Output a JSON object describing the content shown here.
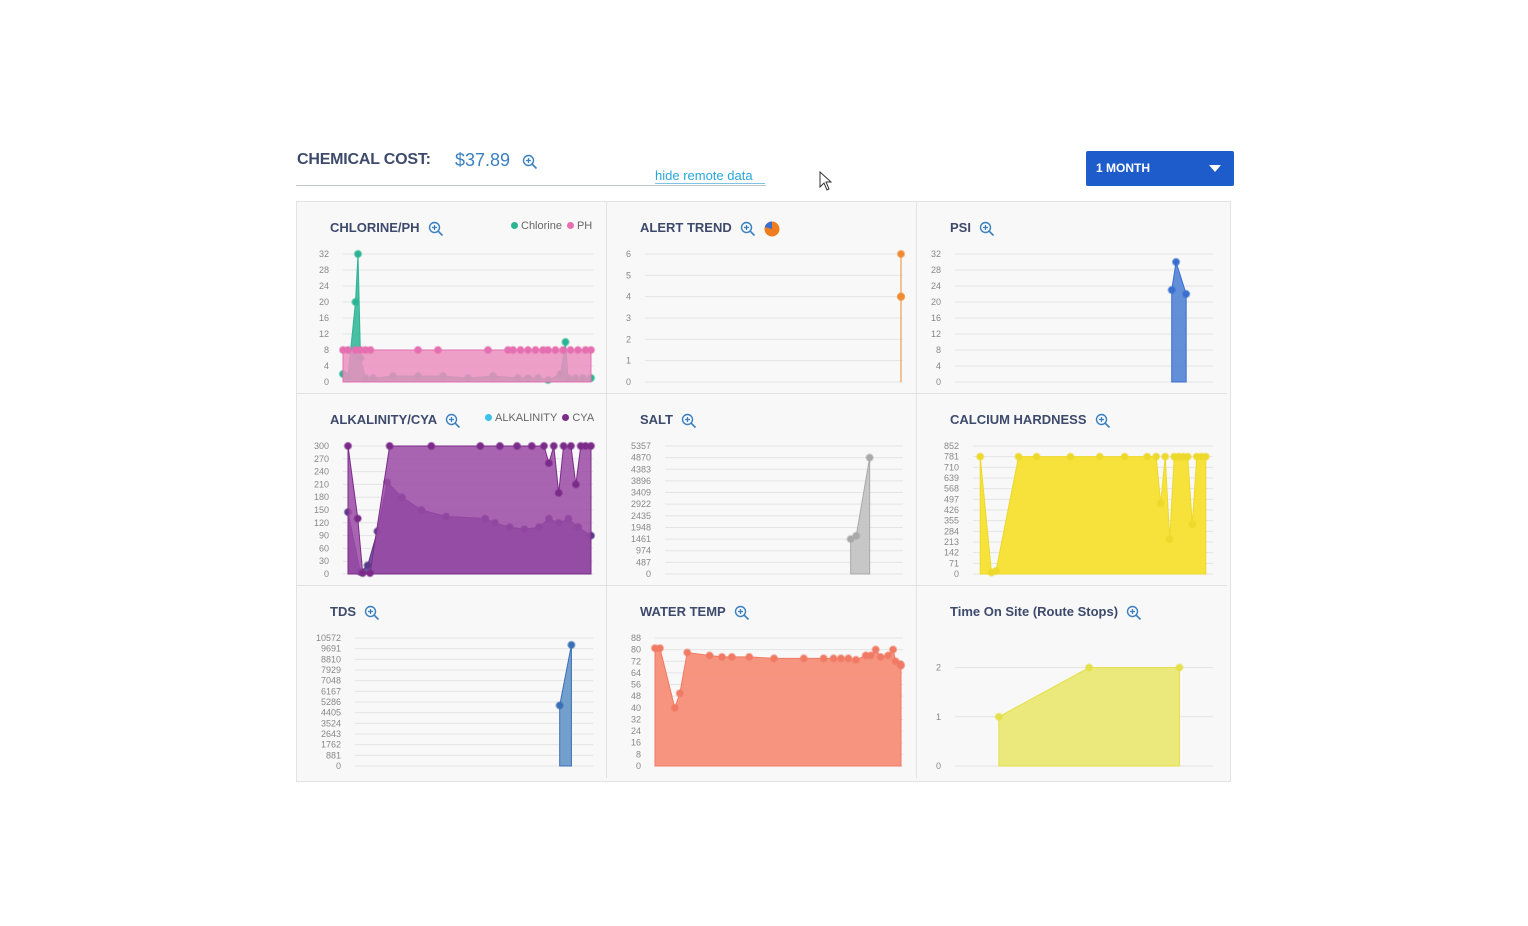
{
  "header": {
    "cost_label": "CHEMICAL COST:",
    "cost_value": "$37.89",
    "hide_remote_label": "hide remote data",
    "range_selected": "1 MONTH"
  },
  "icons": {
    "zoom": "zoom-in-icon",
    "dropdown": "chevron-down-icon",
    "pie": "pie-chart-icon",
    "cursor": "mouse-pointer-icon"
  },
  "chart_data": [
    {
      "id": "chlorine-ph",
      "type": "area",
      "title": "CHLORINE/PH",
      "yticks": [
        "0",
        "4",
        "8",
        "12",
        "16",
        "20",
        "24",
        "28",
        "32"
      ],
      "ylim": [
        0,
        32
      ],
      "legend": [
        {
          "label": "Chlorine",
          "color": "#2bb594"
        },
        {
          "label": "PH",
          "color": "#e56fb0"
        }
      ],
      "series": [
        {
          "name": "Chlorine",
          "color": "#2bb594",
          "fill": "#2bb594",
          "points": [
            [
              0,
              2
            ],
            [
              2,
              1.5
            ],
            [
              5,
              20
            ],
            [
              6,
              32
            ],
            [
              7,
              6
            ],
            [
              9,
              1
            ],
            [
              12,
              1
            ],
            [
              20,
              1.5
            ],
            [
              30,
              1.5
            ],
            [
              40,
              1.5
            ],
            [
              50,
              1
            ],
            [
              60,
              1.5
            ],
            [
              70,
              1
            ],
            [
              74,
              1
            ],
            [
              78,
              1
            ],
            [
              82,
              0.5
            ],
            [
              87,
              2
            ],
            [
              89,
              10
            ],
            [
              90,
              1
            ],
            [
              93,
              1
            ],
            [
              96,
              1
            ],
            [
              100,
              1
            ]
          ]
        },
        {
          "name": "PH",
          "color": "#e56fb0",
          "fill": "#ec8fbf",
          "points": [
            [
              0,
              8
            ],
            [
              2,
              8
            ],
            [
              5,
              8
            ],
            [
              7,
              8
            ],
            [
              9,
              8
            ],
            [
              11,
              8
            ],
            [
              30,
              8
            ],
            [
              38,
              8
            ],
            [
              58,
              8
            ],
            [
              66,
              8
            ],
            [
              68,
              8
            ],
            [
              71,
              8
            ],
            [
              74,
              8
            ],
            [
              77,
              8
            ],
            [
              80,
              8
            ],
            [
              82,
              8
            ],
            [
              85,
              8
            ],
            [
              88,
              8
            ],
            [
              91,
              8
            ],
            [
              94,
              8
            ],
            [
              97,
              8
            ],
            [
              100,
              8
            ]
          ]
        }
      ]
    },
    {
      "id": "alert-trend",
      "type": "area",
      "title": "ALERT TREND",
      "yticks": [
        "0",
        "1",
        "2",
        "3",
        "4",
        "5",
        "6"
      ],
      "ylim": [
        0,
        6
      ],
      "series": [
        {
          "name": "",
          "color": "#ef8a33",
          "fill": "#f0913f",
          "points": [
            [
              80,
              6
            ],
            [
              86,
              4
            ],
            [
              100,
              4
            ]
          ]
        }
      ]
    },
    {
      "id": "psi",
      "type": "area",
      "title": "PSI",
      "yticks": [
        "0",
        "4",
        "8",
        "12",
        "16",
        "20",
        "24",
        "28",
        "32"
      ],
      "ylim": [
        0,
        32
      ],
      "series": [
        {
          "name": "",
          "color": "#3a6fcf",
          "fill": "#5b88d6",
          "points": [
            [
              0,
              23
            ],
            [
              6,
              30
            ],
            [
              20,
              22
            ]
          ]
        }
      ]
    },
    {
      "id": "alkalinity-cya",
      "type": "area",
      "title": "ALKALINITY/CYA",
      "yticks": [
        "0",
        "30",
        "60",
        "90",
        "120",
        "150",
        "180",
        "210",
        "240",
        "270",
        "300"
      ],
      "ylim": [
        0,
        300
      ],
      "legend": [
        {
          "label": "ALKALINITY",
          "color": "#3cc2ea"
        },
        {
          "label": "CYA",
          "color": "#7b2b8a"
        }
      ],
      "series": [
        {
          "name": "ALKALINITY",
          "color": "#5a3a8a",
          "fill": "#5e3a92",
          "points": [
            [
              0,
              145
            ],
            [
              5,
              5
            ],
            [
              8,
              20
            ],
            [
              12,
              100
            ],
            [
              16,
              215
            ],
            [
              22,
              180
            ],
            [
              30,
              150
            ],
            [
              40,
              135
            ],
            [
              56,
              130
            ],
            [
              60,
              120
            ],
            [
              66,
              110
            ],
            [
              72,
              105
            ],
            [
              78,
              110
            ],
            [
              82,
              130
            ],
            [
              86,
              120
            ],
            [
              90,
              130
            ],
            [
              94,
              110
            ],
            [
              100,
              90
            ]
          ]
        },
        {
          "name": "CYA",
          "color": "#7b2b8a",
          "fill": "#9b4aa4",
          "points": [
            [
              0,
              300
            ],
            [
              4,
              130
            ],
            [
              6,
              2
            ],
            [
              9,
              2
            ],
            [
              17,
              300
            ],
            [
              34,
              300
            ],
            [
              54,
              300
            ],
            [
              62,
              300
            ],
            [
              69,
              300
            ],
            [
              75,
              300
            ],
            [
              80,
              300
            ],
            [
              82,
              260
            ],
            [
              84,
              300
            ],
            [
              86,
              190
            ],
            [
              88,
              300
            ],
            [
              91,
              300
            ],
            [
              93,
              210
            ],
            [
              95,
              300
            ],
            [
              97,
              300
            ],
            [
              100,
              300
            ]
          ]
        }
      ]
    },
    {
      "id": "salt",
      "type": "area",
      "title": "SALT",
      "yticks": [
        "0",
        "487",
        "974",
        "1461",
        "1948",
        "2435",
        "2922",
        "3409",
        "3896",
        "4383",
        "4870",
        "5357"
      ],
      "ylim": [
        0,
        5357
      ],
      "series": [
        {
          "name": "",
          "color": "#a9a9a9",
          "fill": "#c4c4c4",
          "points": [
            [
              0,
              1461
            ],
            [
              5,
              1600
            ],
            [
              17,
              4870
            ]
          ]
        }
      ]
    },
    {
      "id": "calcium-hardness",
      "type": "area",
      "title": "CALCIUM HARDNESS",
      "yticks": [
        "0",
        "71",
        "142",
        "213",
        "284",
        "355",
        "426",
        "497",
        "568",
        "639",
        "710",
        "781",
        "852"
      ],
      "ylim": [
        0,
        852
      ],
      "series": [
        {
          "name": "",
          "color": "#ecd92b",
          "fill": "#f5e030",
          "points": [
            [
              0,
              781
            ],
            [
              5,
              10
            ],
            [
              7,
              20
            ],
            [
              17,
              781
            ],
            [
              25,
              781
            ],
            [
              40,
              781
            ],
            [
              53,
              781
            ],
            [
              64,
              781
            ],
            [
              74,
              781
            ],
            [
              78,
              781
            ],
            [
              80,
              470
            ],
            [
              82,
              781
            ],
            [
              84,
              230
            ],
            [
              86,
              781
            ],
            [
              88,
              781
            ],
            [
              90,
              781
            ],
            [
              92,
              781
            ],
            [
              94,
              330
            ],
            [
              96,
              781
            ],
            [
              98,
              781
            ],
            [
              100,
              781
            ]
          ]
        }
      ]
    },
    {
      "id": "tds",
      "type": "area",
      "title": "TDS",
      "yticks": [
        "0",
        "881",
        "1762",
        "2643",
        "3524",
        "4405",
        "5286",
        "6167",
        "7048",
        "7929",
        "8810",
        "9691",
        "10572"
      ],
      "ylim": [
        0,
        10572
      ],
      "series": [
        {
          "name": "",
          "color": "#3a6fb5",
          "fill": "#6a9ac9",
          "points": [
            [
              0,
              5000
            ],
            [
              17,
              10000
            ]
          ]
        }
      ]
    },
    {
      "id": "water-temp",
      "type": "area",
      "title": "WATER TEMP",
      "yticks": [
        "0",
        "8",
        "16",
        "24",
        "32",
        "40",
        "48",
        "56",
        "64",
        "72",
        "80",
        "88"
      ],
      "ylim": [
        0,
        88
      ],
      "series": [
        {
          "name": "",
          "color": "#f07a63",
          "fill": "#f58e78",
          "points": [
            [
              0,
              81
            ],
            [
              2,
              81
            ],
            [
              8,
              40
            ],
            [
              10,
              50
            ],
            [
              13,
              78
            ],
            [
              22,
              76
            ],
            [
              27,
              75
            ],
            [
              31,
              75
            ],
            [
              38,
              75
            ],
            [
              48,
              74
            ],
            [
              60,
              74
            ],
            [
              68,
              74
            ],
            [
              72,
              74
            ],
            [
              75,
              74
            ],
            [
              78,
              74
            ],
            [
              81,
              73
            ],
            [
              85,
              76
            ],
            [
              87,
              76
            ],
            [
              89,
              80
            ],
            [
              91,
              75
            ],
            [
              94,
              76
            ],
            [
              96,
              80
            ],
            [
              97,
              72
            ],
            [
              99,
              70
            ],
            [
              100,
              69
            ]
          ]
        }
      ]
    },
    {
      "id": "time-on-site",
      "type": "area",
      "title": "Time On Site (Route Stops)",
      "yticks": [
        "0",
        "1",
        "2"
      ],
      "ylim": [
        0,
        2.6
      ],
      "series": [
        {
          "name": "",
          "color": "#e3e04a",
          "fill": "#ebe875",
          "points": [
            [
              0,
              1
            ],
            [
              50,
              2
            ],
            [
              100,
              2
            ]
          ]
        }
      ]
    }
  ]
}
